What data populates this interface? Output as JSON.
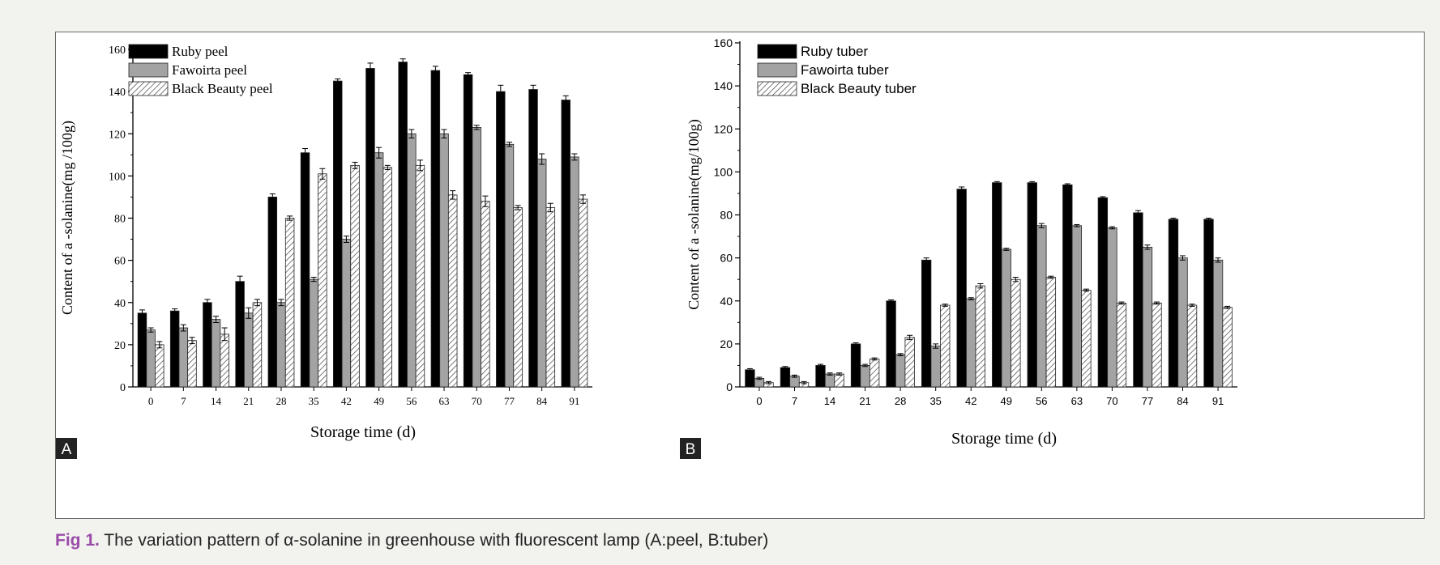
{
  "caption": {
    "label": "Fig 1.",
    "text": " The variation pattern of α-solanine in greenhouse with fluorescent lamp (A:peel, B:tuber)"
  },
  "chart_data": [
    {
      "type": "bar",
      "panel_label": "A",
      "xlabel": "Storage time (d)",
      "ylabel": "Content of a  -solanine(mg /100g)",
      "ylim": [
        0,
        160
      ],
      "yticks": [
        0,
        20,
        40,
        60,
        80,
        100,
        120,
        140,
        160
      ],
      "categories": [
        "0",
        "7",
        "14",
        "21",
        "28",
        "35",
        "42",
        "49",
        "56",
        "63",
        "70",
        "77",
        "84",
        "91"
      ],
      "legend_position": "top-left",
      "series": [
        {
          "name": "Ruby peel",
          "fill": "black",
          "color": "#000000",
          "values": [
            35,
            36,
            40,
            50,
            90,
            111,
            145,
            151,
            154,
            150,
            148,
            140,
            141,
            136
          ],
          "errors": [
            1.5,
            1,
            1.5,
            2.5,
            1.5,
            2,
            1,
            2.5,
            1.5,
            2,
            1,
            3,
            2,
            2
          ]
        },
        {
          "name": "Fawoirta peel",
          "fill": "gray",
          "color": "#a3a3a3",
          "values": [
            27,
            28,
            32,
            35,
            40,
            51,
            70,
            111,
            120,
            120,
            123,
            115,
            108,
            109
          ],
          "errors": [
            1,
            1.5,
            1.5,
            2.5,
            1.5,
            1,
            1.5,
            2.5,
            2,
            2,
            1,
            1,
            2.5,
            1.5
          ]
        },
        {
          "name": "Black Beauty peel",
          "fill": "hatch",
          "color": "#ffffff",
          "values": [
            20,
            22,
            25,
            40,
            80,
            101,
            105,
            104,
            105,
            91,
            88,
            85,
            85,
            89
          ],
          "errors": [
            1.5,
            1.5,
            3,
            1.5,
            1,
            2.5,
            1.5,
            1,
            2.5,
            2,
            2.5,
            1,
            2,
            2
          ]
        }
      ]
    },
    {
      "type": "bar",
      "panel_label": "B",
      "xlabel": "Storage time (d)",
      "ylabel": "Content of a  -solanine(mg/100g)",
      "ylim": [
        0,
        160
      ],
      "yticks": [
        0,
        20,
        40,
        60,
        80,
        100,
        120,
        140,
        160
      ],
      "categories": [
        "0",
        "7",
        "14",
        "21",
        "28",
        "35",
        "42",
        "49",
        "56",
        "63",
        "70",
        "77",
        "84",
        "91"
      ],
      "legend_position": "top-left",
      "series": [
        {
          "name": "Ruby tuber",
          "fill": "black",
          "color": "#000000",
          "values": [
            8,
            9,
            10,
            20,
            40,
            59,
            92,
            95,
            95,
            94,
            88,
            81,
            78,
            78
          ],
          "errors": [
            0.5,
            0.5,
            0.5,
            0.5,
            0.5,
            1,
            1,
            0.5,
            0.5,
            0.5,
            0.5,
            1,
            0.5,
            0.5
          ]
        },
        {
          "name": "Fawoirta tuber",
          "fill": "gray",
          "color": "#a3a3a3",
          "values": [
            4,
            5,
            6,
            10,
            15,
            19,
            41,
            64,
            75,
            75,
            74,
            65,
            60,
            59
          ],
          "errors": [
            0.5,
            0.5,
            0.5,
            0.5,
            0.5,
            1,
            0.5,
            0.5,
            1,
            0.5,
            0.5,
            1,
            1,
            1
          ]
        },
        {
          "name": "Black Beauty tuber",
          "fill": "hatch",
          "color": "#ffffff",
          "values": [
            2,
            2,
            6,
            13,
            23,
            38,
            47,
            50,
            51,
            45,
            39,
            39,
            38,
            37
          ],
          "errors": [
            0.5,
            0.5,
            0.5,
            0.5,
            1,
            0.5,
            1,
            1,
            0.5,
            0.5,
            0.5,
            0.5,
            0.5,
            0.5
          ]
        }
      ]
    }
  ]
}
